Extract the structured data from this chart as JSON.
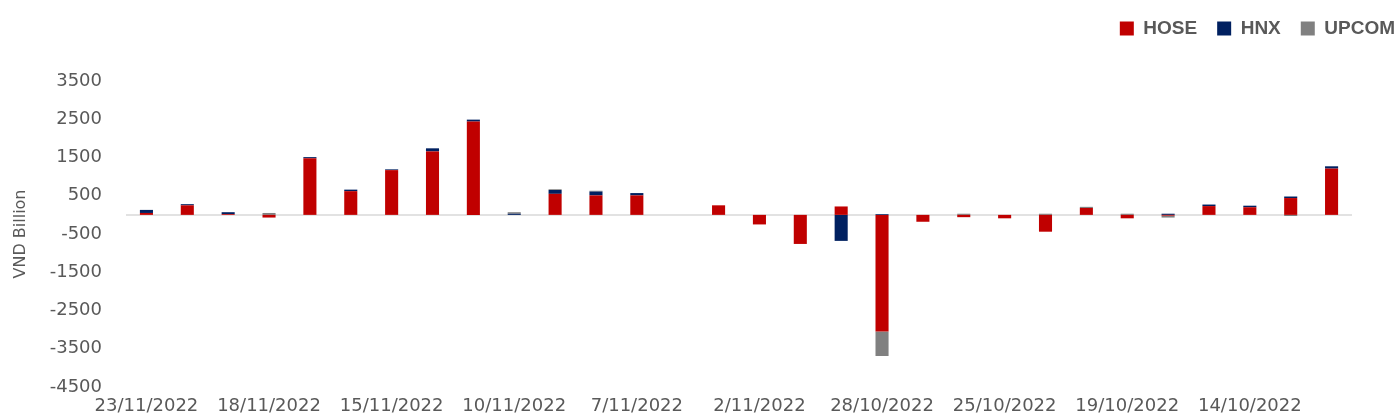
{
  "chart_data": {
    "type": "bar",
    "stacked": true,
    "categories": [
      "23/11/2022",
      null,
      null,
      "18/11/2022",
      null,
      null,
      "15/11/2022",
      null,
      null,
      "10/11/2022",
      null,
      null,
      "7/11/2022",
      null,
      null,
      "2/11/2022",
      null,
      null,
      "28/10/2022",
      null,
      null,
      "25/10/2022",
      null,
      null,
      "19/10/2022",
      null,
      null,
      "14/10/2022",
      null,
      null
    ],
    "series": [
      {
        "name": "HOSE",
        "color": "#c00000",
        "values": [
          50,
          250,
          20,
          -70,
          1480,
          620,
          1170,
          1660,
          2440,
          0,
          550,
          510,
          510,
          null,
          250,
          -250,
          -760,
          220,
          -3050,
          -180,
          -60,
          -90,
          -440,
          180,
          -90,
          -20,
          230,
          200,
          440,
          1210
        ]
      },
      {
        "name": "HNX",
        "color": "#002060",
        "values": [
          80,
          30,
          50,
          0,
          30,
          40,
          20,
          80,
          50,
          30,
          100,
          100,
          60,
          null,
          0,
          0,
          0,
          -680,
          20,
          0,
          0,
          0,
          0,
          0,
          0,
          30,
          40,
          40,
          40,
          60
        ]
      },
      {
        "name": "UPCOM",
        "color": "#808080",
        "values": [
          0,
          0,
          0,
          50,
          0,
          0,
          0,
          0,
          0,
          40,
          20,
          20,
          0,
          null,
          0,
          0,
          0,
          0,
          -640,
          0,
          30,
          0,
          30,
          30,
          30,
          -50,
          0,
          0,
          -30,
          0
        ]
      }
    ],
    "ylabel": "VND Billion",
    "ylim": [
      -4500,
      3500
    ],
    "yticks": [
      -4500,
      -3500,
      -2500,
      -1500,
      -500,
      500,
      1500,
      2500,
      3500
    ],
    "grid": false,
    "legend": "top right"
  }
}
